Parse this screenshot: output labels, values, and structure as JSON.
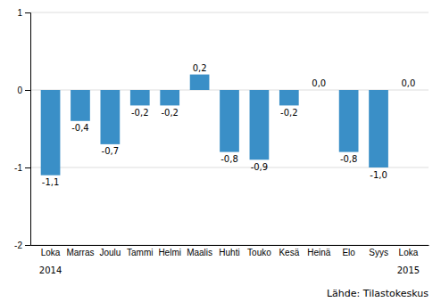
{
  "chart_data": {
    "type": "bar",
    "categories": [
      "Loka",
      "Marras",
      "Joulu",
      "Tammi",
      "Helmi",
      "Maalis",
      "Huhti",
      "Touko",
      "Kesä",
      "Heinä",
      "Elo",
      "Syys",
      "Loka"
    ],
    "values": [
      -1.1,
      -0.4,
      -0.7,
      -0.2,
      -0.2,
      0.2,
      -0.8,
      -0.9,
      -0.2,
      0.0,
      -0.8,
      -1.0,
      0.0
    ],
    "value_labels": [
      "-1,1",
      "-0,4",
      "-0,7",
      "-0,2",
      "-0,2",
      "0,2",
      "-0,8",
      "-0,9",
      "-0,2",
      "0,0",
      "-0,8",
      "-1,0",
      "0,0"
    ],
    "data_labels": true,
    "color": "#3a8fc7",
    "ylim": [
      -2,
      1
    ],
    "yticks": [
      -2,
      -1,
      0,
      1
    ],
    "grid": true,
    "annotations": [
      {
        "text": "2014",
        "x": 0
      },
      {
        "text": "2015",
        "x": 12
      }
    ],
    "source": "Lähde: Tilastokeskus"
  }
}
